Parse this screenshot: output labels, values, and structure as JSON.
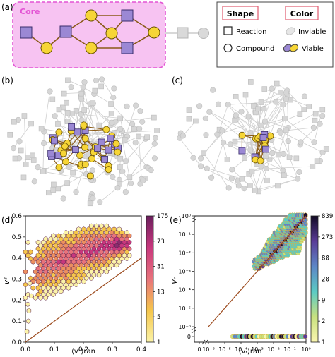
{
  "panel_a": {
    "label": "(a)",
    "core_label": "Core",
    "legend": {
      "shape_title": "Shape",
      "color_title": "Color",
      "reaction": "Reaction",
      "compound": "Compound",
      "inviable": "Inviable",
      "viable": "Viable"
    }
  },
  "panel_b": {
    "label": "(b)"
  },
  "panel_c": {
    "label": "(c)"
  },
  "panel_d": {
    "label": "(d)",
    "ylabel": "vˢ",
    "xlabel": "⟨vˢ⟩ran",
    "colorbar_ticks": [
      "175",
      "73",
      "31",
      "13",
      "5",
      "1"
    ]
  },
  "panel_e": {
    "label": "(e)",
    "ylabel": "vᵣ",
    "xlabel": "⟨vᵣ⟩ran",
    "colorbar_ticks": [
      "839",
      "273",
      "88",
      "28",
      "9",
      "2",
      "1"
    ]
  },
  "colors": {
    "core_fill": "#f7c3f2",
    "core_border": "#e354d4",
    "reaction": "#9b88d4",
    "compound": "#f6d536",
    "edge": "#8a5a16",
    "inviable": "#d9d9d9",
    "diagonal": "#9c4a1d"
  },
  "chart_data": [
    {
      "panel": "(d)",
      "type": "heatmap",
      "xlabel": "⟨vˢ⟩ran",
      "ylabel": "vˢ",
      "xlim": [
        0.0,
        0.4
      ],
      "ylim": [
        0.0,
        0.6
      ],
      "xticks": [
        "0.0",
        "0.1",
        "0.2",
        "0.3",
        "0.4"
      ],
      "yticks": [
        "0.0",
        "0.1",
        "0.2",
        "0.3",
        "0.4",
        "0.5",
        "0.6"
      ],
      "colorbar": {
        "scale": "log",
        "range": [
          1,
          175
        ],
        "ticks": [
          1,
          5,
          13,
          31,
          73,
          175
        ]
      },
      "reference_line": "y = x",
      "density_band": [
        {
          "x": 0.05,
          "y_low": 0.25,
          "y_high": 0.45
        },
        {
          "x": 0.1,
          "y_low": 0.27,
          "y_high": 0.48
        },
        {
          "x": 0.15,
          "y_low": 0.3,
          "y_high": 0.5
        },
        {
          "x": 0.2,
          "y_low": 0.33,
          "y_high": 0.52
        },
        {
          "x": 0.25,
          "y_low": 0.36,
          "y_high": 0.53
        },
        {
          "x": 0.3,
          "y_low": 0.4,
          "y_high": 0.52
        },
        {
          "x": 0.34,
          "y_low": 0.44,
          "y_high": 0.5
        }
      ]
    },
    {
      "panel": "(e)",
      "type": "heatmap",
      "xlabel": "⟨vᵣ⟩ran",
      "ylabel": "vᵣ",
      "x_scale": "log",
      "y_scale": "log",
      "xlim": [
        1e-06,
        1
      ],
      "ylim": [
        1e-06,
        1
      ],
      "xticks": [
        "0",
        "10⁻⁶",
        "10⁻⁵",
        "10⁻⁴",
        "10⁻³",
        "10⁻²",
        "10⁻¹",
        "10⁰"
      ],
      "yticks": [
        "10⁰",
        "10⁻¹",
        "10⁻²",
        "10⁻³",
        "10⁻⁴",
        "10⁻⁵",
        "10⁻⁶",
        "0"
      ],
      "colorbar": {
        "scale": "log",
        "range": [
          1,
          839
        ],
        "ticks": [
          1,
          2,
          9,
          28,
          88,
          273,
          839
        ]
      },
      "reference_line": "y = x",
      "density_band": [
        {
          "x_log10": -3.0,
          "y_log10_low": -2.8,
          "y_log10_high": -2.4
        },
        {
          "x_log10": -2.5,
          "y_log10_low": -2.6,
          "y_log10_high": -1.6
        },
        {
          "x_log10": -2.0,
          "y_log10_low": -2.4,
          "y_log10_high": -1.0
        },
        {
          "x_log10": -1.5,
          "y_log10_low": -2.2,
          "y_log10_high": -0.5
        },
        {
          "x_log10": -1.0,
          "y_log10_low": -2.0,
          "y_log10_high": 0.0
        },
        {
          "x_log10": -0.5,
          "y_log10_low": -2.0,
          "y_log10_high": 0.0
        },
        {
          "x_log10": 0.0,
          "y_log10_low": -0.8,
          "y_log10_high": 0.0
        }
      ],
      "zero_row_x_log10_range": [
        -4.5,
        0.0
      ]
    }
  ]
}
